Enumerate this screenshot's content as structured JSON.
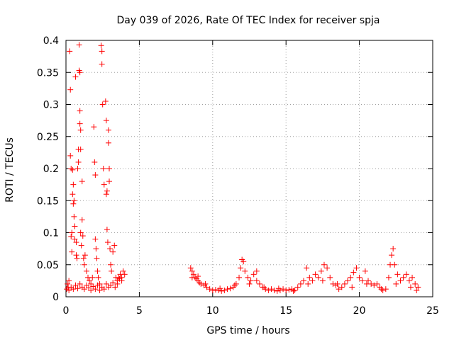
{
  "chart_data": {
    "type": "scatter",
    "title": "Day 039 of 2026, Rate Of TEC Index for receiver spja",
    "xlabel": "GPS time / hours",
    "ylabel": "ROTI / TECUs",
    "xlim": [
      0,
      25
    ],
    "ylim": [
      0,
      0.4
    ],
    "xticks": [
      0,
      5,
      10,
      15,
      20,
      25
    ],
    "xtick_labels": [
      "0",
      "5",
      "10",
      "15",
      "20",
      "25"
    ],
    "yticks": [
      0,
      0.05,
      0.1,
      0.15,
      0.2,
      0.25,
      0.3,
      0.35,
      0.4
    ],
    "ytick_labels": [
      "0",
      "0.05",
      "0.1",
      "0.15",
      "0.2",
      "0.25",
      "0.3",
      "0.35",
      "0.4"
    ],
    "grid": true,
    "marker": "+",
    "marker_color": "#ff0000",
    "series": [
      {
        "name": "ROTI",
        "points": [
          [
            0.1,
            0.02
          ],
          [
            0.15,
            0.015
          ],
          [
            0.2,
            0.025
          ],
          [
            0.25,
            0.383
          ],
          [
            0.3,
            0.323
          ],
          [
            0.3,
            0.22
          ],
          [
            0.35,
            0.2
          ],
          [
            0.35,
            0.094
          ],
          [
            0.4,
            0.1
          ],
          [
            0.4,
            0.07
          ],
          [
            0.45,
            0.198
          ],
          [
            0.45,
            0.16
          ],
          [
            0.5,
            0.175
          ],
          [
            0.5,
            0.145
          ],
          [
            0.55,
            0.15
          ],
          [
            0.55,
            0.125
          ],
          [
            0.6,
            0.11
          ],
          [
            0.6,
            0.09
          ],
          [
            0.65,
            0.343
          ],
          [
            0.7,
            0.085
          ],
          [
            0.7,
            0.065
          ],
          [
            0.75,
            0.06
          ],
          [
            0.8,
            0.2
          ],
          [
            0.85,
            0.23
          ],
          [
            0.85,
            0.21
          ],
          [
            0.9,
            0.393
          ],
          [
            0.9,
            0.353
          ],
          [
            0.95,
            0.35
          ],
          [
            0.95,
            0.29
          ],
          [
            0.95,
            0.27
          ],
          [
            1.0,
            0.26
          ],
          [
            1.0,
            0.23
          ],
          [
            1.0,
            0.1
          ],
          [
            1.05,
            0.08
          ],
          [
            1.1,
            0.18
          ],
          [
            1.1,
            0.12
          ],
          [
            1.15,
            0.095
          ],
          [
            1.2,
            0.06
          ],
          [
            1.25,
            0.05
          ],
          [
            1.3,
            0.065
          ],
          [
            1.4,
            0.04
          ],
          [
            1.5,
            0.03
          ],
          [
            1.6,
            0.025
          ],
          [
            1.7,
            0.02
          ],
          [
            1.8,
            0.03
          ],
          [
            1.9,
            0.265
          ],
          [
            1.95,
            0.21
          ],
          [
            2.0,
            0.19
          ],
          [
            2.0,
            0.09
          ],
          [
            2.05,
            0.075
          ],
          [
            2.1,
            0.06
          ],
          [
            2.15,
            0.04
          ],
          [
            2.2,
            0.03
          ],
          [
            2.3,
            0.02
          ],
          [
            2.4,
            0.392
          ],
          [
            2.45,
            0.383
          ],
          [
            2.45,
            0.363
          ],
          [
            2.5,
            0.3
          ],
          [
            2.55,
            0.2
          ],
          [
            2.6,
            0.175
          ],
          [
            2.7,
            0.305
          ],
          [
            2.75,
            0.275
          ],
          [
            2.75,
            0.16
          ],
          [
            2.8,
            0.165
          ],
          [
            2.8,
            0.105
          ],
          [
            2.85,
            0.085
          ],
          [
            2.9,
            0.26
          ],
          [
            2.9,
            0.24
          ],
          [
            2.95,
            0.2
          ],
          [
            2.95,
            0.18
          ],
          [
            3.0,
            0.075
          ],
          [
            3.05,
            0.05
          ],
          [
            3.1,
            0.04
          ],
          [
            3.2,
            0.07
          ],
          [
            3.3,
            0.08
          ],
          [
            3.4,
            0.03
          ],
          [
            3.5,
            0.025
          ],
          [
            3.6,
            0.03
          ],
          [
            3.7,
            0.035
          ],
          [
            3.8,
            0.03
          ],
          [
            3.9,
            0.04
          ],
          [
            4.0,
            0.035
          ],
          [
            0.05,
            0.012
          ],
          [
            0.2,
            0.01
          ],
          [
            0.35,
            0.015
          ],
          [
            0.5,
            0.012
          ],
          [
            0.65,
            0.018
          ],
          [
            0.8,
            0.013
          ],
          [
            0.95,
            0.02
          ],
          [
            1.1,
            0.015
          ],
          [
            1.25,
            0.012
          ],
          [
            1.4,
            0.018
          ],
          [
            1.55,
            0.014
          ],
          [
            1.7,
            0.01
          ],
          [
            1.85,
            0.016
          ],
          [
            2.0,
            0.012
          ],
          [
            2.15,
            0.018
          ],
          [
            2.3,
            0.01
          ],
          [
            2.45,
            0.015
          ],
          [
            2.6,
            0.012
          ],
          [
            2.75,
            0.02
          ],
          [
            2.9,
            0.015
          ],
          [
            3.05,
            0.018
          ],
          [
            3.2,
            0.022
          ],
          [
            3.35,
            0.015
          ],
          [
            3.5,
            0.02
          ],
          [
            3.65,
            0.028
          ],
          [
            3.8,
            0.025
          ],
          [
            8.5,
            0.045
          ],
          [
            8.6,
            0.04
          ],
          [
            8.7,
            0.035
          ],
          [
            8.8,
            0.03
          ],
          [
            8.9,
            0.028
          ],
          [
            9.0,
            0.025
          ],
          [
            9.1,
            0.022
          ],
          [
            9.2,
            0.02
          ],
          [
            9.4,
            0.018
          ],
          [
            9.6,
            0.015
          ],
          [
            9.8,
            0.012
          ],
          [
            10.0,
            0.01
          ],
          [
            10.2,
            0.011
          ],
          [
            10.4,
            0.01
          ],
          [
            10.6,
            0.009
          ],
          [
            10.8,
            0.01
          ],
          [
            11.0,
            0.012
          ],
          [
            11.2,
            0.013
          ],
          [
            11.4,
            0.015
          ],
          [
            11.6,
            0.02
          ],
          [
            11.8,
            0.03
          ],
          [
            11.9,
            0.045
          ],
          [
            12.0,
            0.058
          ],
          [
            12.1,
            0.055
          ],
          [
            12.2,
            0.04
          ],
          [
            12.4,
            0.03
          ],
          [
            12.6,
            0.025
          ],
          [
            12.8,
            0.035
          ],
          [
            13.0,
            0.04
          ],
          [
            13.2,
            0.02
          ],
          [
            13.4,
            0.015
          ],
          [
            13.6,
            0.012
          ],
          [
            13.8,
            0.01
          ],
          [
            14.0,
            0.012
          ],
          [
            14.2,
            0.01
          ],
          [
            14.4,
            0.009
          ],
          [
            14.6,
            0.01
          ],
          [
            14.8,
            0.012
          ],
          [
            15.0,
            0.01
          ],
          [
            15.2,
            0.011
          ],
          [
            15.4,
            0.012
          ],
          [
            15.6,
            0.01
          ],
          [
            15.8,
            0.015
          ],
          [
            16.0,
            0.02
          ],
          [
            16.2,
            0.025
          ],
          [
            16.4,
            0.045
          ],
          [
            16.6,
            0.03
          ],
          [
            16.8,
            0.025
          ],
          [
            17.0,
            0.035
          ],
          [
            17.2,
            0.03
          ],
          [
            17.4,
            0.04
          ],
          [
            17.6,
            0.05
          ],
          [
            17.8,
            0.045
          ],
          [
            18.0,
            0.03
          ],
          [
            18.2,
            0.02
          ],
          [
            18.4,
            0.018
          ],
          [
            18.6,
            0.012
          ],
          [
            18.8,
            0.015
          ],
          [
            19.0,
            0.02
          ],
          [
            19.2,
            0.025
          ],
          [
            19.4,
            0.03
          ],
          [
            19.6,
            0.038
          ],
          [
            19.8,
            0.045
          ],
          [
            20.0,
            0.03
          ],
          [
            20.2,
            0.025
          ],
          [
            20.4,
            0.04
          ],
          [
            20.6,
            0.025
          ],
          [
            20.8,
            0.02
          ],
          [
            21.0,
            0.018
          ],
          [
            21.2,
            0.02
          ],
          [
            21.4,
            0.015
          ],
          [
            21.6,
            0.01
          ],
          [
            21.8,
            0.012
          ],
          [
            22.0,
            0.03
          ],
          [
            22.1,
            0.05
          ],
          [
            22.2,
            0.065
          ],
          [
            22.3,
            0.075
          ],
          [
            22.4,
            0.05
          ],
          [
            22.6,
            0.035
          ],
          [
            22.8,
            0.025
          ],
          [
            23.0,
            0.03
          ],
          [
            23.2,
            0.035
          ],
          [
            23.4,
            0.025
          ],
          [
            23.6,
            0.03
          ],
          [
            23.8,
            0.02
          ],
          [
            24.0,
            0.015
          ],
          [
            8.6,
            0.03
          ],
          [
            9.0,
            0.032
          ],
          [
            9.5,
            0.02
          ],
          [
            10.5,
            0.013
          ],
          [
            11.5,
            0.018
          ],
          [
            12.5,
            0.02
          ],
          [
            13.0,
            0.025
          ],
          [
            13.5,
            0.015
          ],
          [
            14.5,
            0.013
          ],
          [
            15.5,
            0.009
          ],
          [
            16.5,
            0.02
          ],
          [
            17.5,
            0.025
          ],
          [
            18.5,
            0.02
          ],
          [
            19.5,
            0.015
          ],
          [
            20.5,
            0.02
          ],
          [
            21.5,
            0.012
          ],
          [
            22.5,
            0.02
          ],
          [
            23.5,
            0.015
          ],
          [
            23.9,
            0.01
          ]
        ]
      }
    ]
  }
}
